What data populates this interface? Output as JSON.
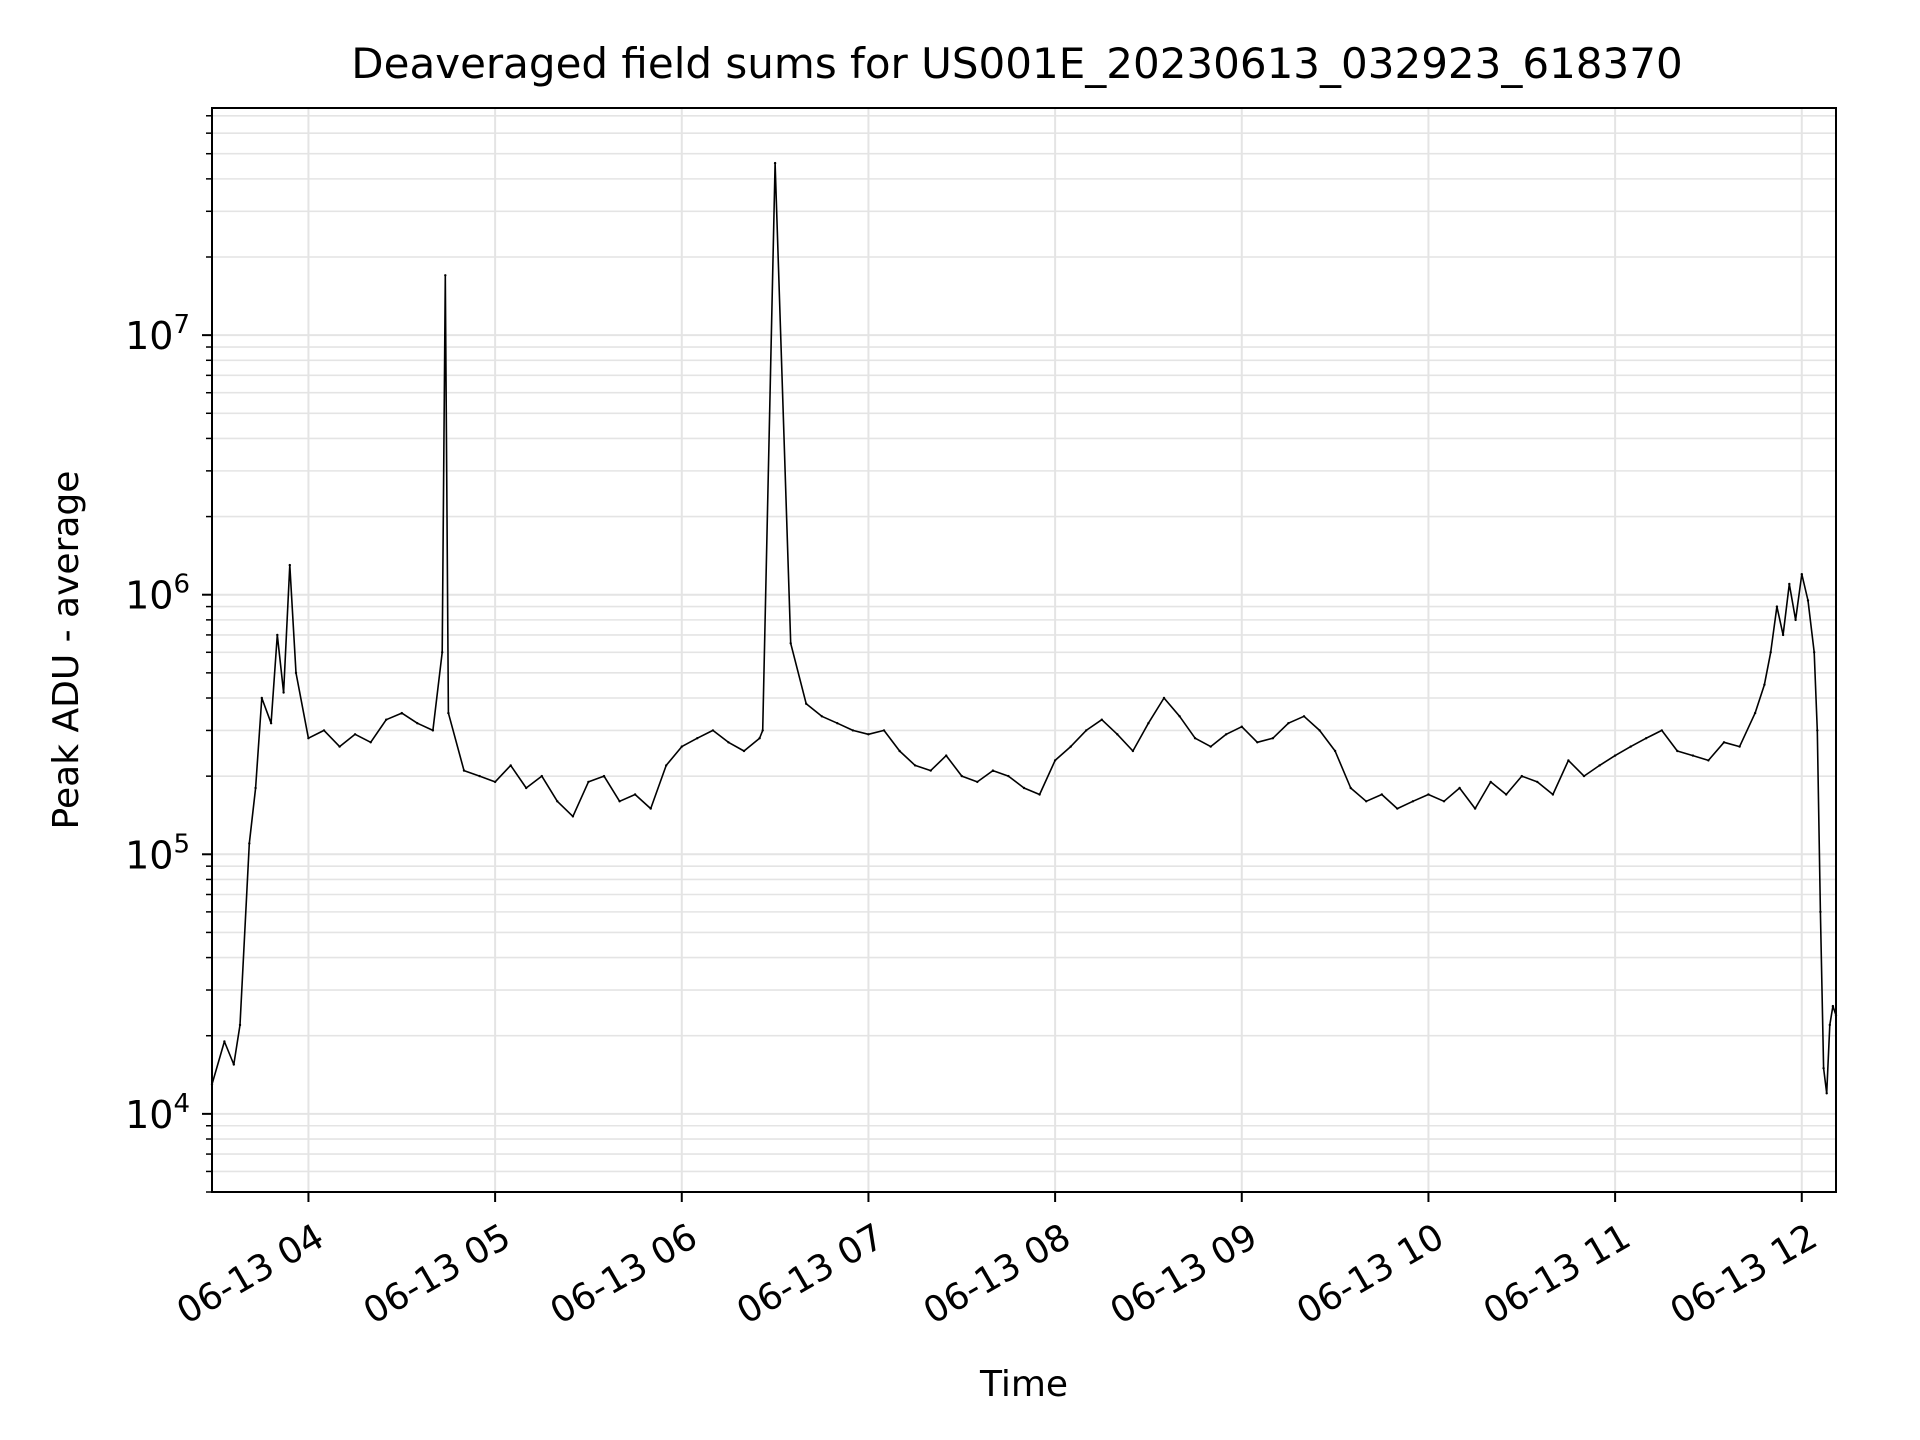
{
  "chart_data": {
    "type": "line",
    "title": "Deaveraged field sums for US001E_20230613_032923_618370",
    "xlabel": "Time",
    "ylabel": "Peak ADU - average",
    "x_scale": "time",
    "y_scale": "log",
    "xlim": [
      "06-13 03:29",
      "06-13 12:11"
    ],
    "ylim": [
      5000,
      75000000
    ],
    "grid": true,
    "x_ticks": [
      "06-13 04",
      "06-13 05",
      "06-13 06",
      "06-13 07",
      "06-13 08",
      "06-13 09",
      "06-13 10",
      "06-13 11",
      "06-13 12"
    ],
    "y_ticks": [
      {
        "base": "10",
        "exp": "4",
        "value": 10000
      },
      {
        "base": "10",
        "exp": "5",
        "value": 100000
      },
      {
        "base": "10",
        "exp": "6",
        "value": 1000000
      },
      {
        "base": "10",
        "exp": "7",
        "value": 10000000
      }
    ],
    "line_color": "#000000",
    "grid_color": "#e4e4e4",
    "series": [
      {
        "x": [
          "06-13 03:29",
          "06-13 03:33",
          "06-13 03:36",
          "06-13 03:38",
          "06-13 03:41",
          "06-13 03:43",
          "06-13 03:45",
          "06-13 03:48",
          "06-13 03:50",
          "06-13 03:52",
          "06-13 03:54",
          "06-13 03:56",
          "06-13 04:00",
          "06-13 04:05",
          "06-13 04:10",
          "06-13 04:15",
          "06-13 04:20",
          "06-13 04:25",
          "06-13 04:30",
          "06-13 04:35",
          "06-13 04:40",
          "06-13 04:43",
          "06-13 04:44",
          "06-13 04:45",
          "06-13 04:50",
          "06-13 04:55",
          "06-13 05:00",
          "06-13 05:05",
          "06-13 05:10",
          "06-13 05:15",
          "06-13 05:20",
          "06-13 05:25",
          "06-13 05:30",
          "06-13 05:35",
          "06-13 05:40",
          "06-13 05:45",
          "06-13 05:50",
          "06-13 05:55",
          "06-13 06:00",
          "06-13 06:05",
          "06-13 06:10",
          "06-13 06:15",
          "06-13 06:20",
          "06-13 06:25",
          "06-13 06:26",
          "06-13 06:30",
          "06-13 06:35",
          "06-13 06:40",
          "06-13 06:45",
          "06-13 06:50",
          "06-13 06:55",
          "06-13 07:00",
          "06-13 07:05",
          "06-13 07:10",
          "06-13 07:15",
          "06-13 07:20",
          "06-13 07:25",
          "06-13 07:30",
          "06-13 07:35",
          "06-13 07:40",
          "06-13 07:45",
          "06-13 07:50",
          "06-13 07:55",
          "06-13 08:00",
          "06-13 08:05",
          "06-13 08:10",
          "06-13 08:15",
          "06-13 08:20",
          "06-13 08:25",
          "06-13 08:30",
          "06-13 08:35",
          "06-13 08:40",
          "06-13 08:45",
          "06-13 08:50",
          "06-13 08:55",
          "06-13 09:00",
          "06-13 09:05",
          "06-13 09:10",
          "06-13 09:15",
          "06-13 09:20",
          "06-13 09:25",
          "06-13 09:30",
          "06-13 09:35",
          "06-13 09:40",
          "06-13 09:45",
          "06-13 09:50",
          "06-13 09:55",
          "06-13 10:00",
          "06-13 10:05",
          "06-13 10:10",
          "06-13 10:15",
          "06-13 10:20",
          "06-13 10:25",
          "06-13 10:30",
          "06-13 10:35",
          "06-13 10:40",
          "06-13 10:45",
          "06-13 10:50",
          "06-13 10:55",
          "06-13 11:00",
          "06-13 11:05",
          "06-13 11:10",
          "06-13 11:15",
          "06-13 11:20",
          "06-13 11:25",
          "06-13 11:30",
          "06-13 11:35",
          "06-13 11:40",
          "06-13 11:45",
          "06-13 11:48",
          "06-13 11:50",
          "06-13 11:52",
          "06-13 11:54",
          "06-13 11:56",
          "06-13 11:58",
          "06-13 12:00",
          "06-13 12:02",
          "06-13 12:04",
          "06-13 12:05",
          "06-13 12:06",
          "06-13 12:07",
          "06-13 12:08",
          "06-13 12:09",
          "06-13 12:10",
          "06-13 12:11"
        ],
        "values": [
          13000,
          19000,
          15500,
          22000,
          110000,
          180000,
          400000,
          320000,
          700000,
          420000,
          1300000,
          500000,
          280000,
          300000,
          260000,
          290000,
          270000,
          330000,
          350000,
          320000,
          300000,
          600000,
          17000000,
          350000,
          210000,
          200000,
          190000,
          220000,
          180000,
          200000,
          160000,
          140000,
          190000,
          200000,
          160000,
          170000,
          150000,
          220000,
          260000,
          280000,
          300000,
          270000,
          250000,
          280000,
          300000,
          46000000,
          650000,
          380000,
          340000,
          320000,
          300000,
          290000,
          300000,
          250000,
          220000,
          210000,
          240000,
          200000,
          190000,
          210000,
          200000,
          180000,
          170000,
          230000,
          260000,
          300000,
          330000,
          290000,
          250000,
          320000,
          400000,
          340000,
          280000,
          260000,
          290000,
          310000,
          270000,
          280000,
          320000,
          340000,
          300000,
          250000,
          180000,
          160000,
          170000,
          150000,
          160000,
          170000,
          160000,
          180000,
          150000,
          190000,
          170000,
          200000,
          190000,
          170000,
          230000,
          200000,
          220000,
          240000,
          260000,
          280000,
          300000,
          250000,
          240000,
          230000,
          270000,
          260000,
          350000,
          450000,
          600000,
          900000,
          700000,
          1100000,
          800000,
          1200000,
          950000,
          600000,
          300000,
          60000,
          15000,
          12000,
          22000,
          26000,
          24000
        ]
      }
    ]
  }
}
